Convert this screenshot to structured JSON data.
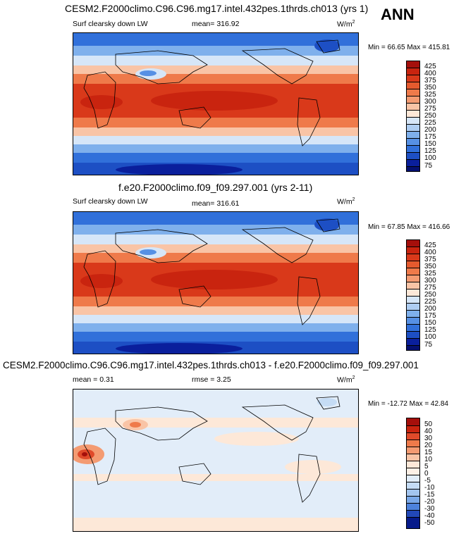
{
  "season": "ANN",
  "panels": [
    {
      "title": "CESM2.F2000climo.C96.C96.mg17.intel.432pes.1thrds.ch013 (yrs 1)",
      "left_label": "Surf clearsky down LW",
      "center_label": "mean= 316.92",
      "units": "W/m",
      "units_sup": "2",
      "minmax": "Min =  66.65 Max = 415.81",
      "cbar_labels": [
        "425",
        "400",
        "375",
        "350",
        "325",
        "300",
        "275",
        "250",
        "225",
        "200",
        "175",
        "150",
        "125",
        "100",
        "75"
      ]
    },
    {
      "title": "f.e20.F2000climo.f09_f09.297.001 (yrs 2-11)",
      "left_label": "Surf clearsky down LW",
      "center_label": "mean= 316.61",
      "units": "W/m",
      "units_sup": "2",
      "minmax": "Min =  67.85 Max = 416.66",
      "cbar_labels": [
        "425",
        "400",
        "375",
        "350",
        "325",
        "300",
        "275",
        "250",
        "225",
        "200",
        "175",
        "150",
        "125",
        "100",
        "75"
      ]
    },
    {
      "title": "CESM2.F2000climo.C96.C96.mg17.intel.432pes.1thrds.ch013 - f.e20.F2000climo.f09_f09.297.001",
      "left_label": "mean =   0.31",
      "center_label": "rmse =   3.25",
      "units": "W/m",
      "units_sup": "2",
      "minmax": "Min = -12.72 Max =  42.84",
      "cbar_labels": [
        "50",
        "40",
        "30",
        "20",
        "15",
        "10",
        "5",
        "0",
        "-5",
        "-10",
        "-15",
        "-20",
        "-30",
        "-40",
        "-50"
      ]
    }
  ],
  "colors": {
    "abs_scale": [
      "#a50f0b",
      "#c9240f",
      "#d9391a",
      "#e55a2e",
      "#ef7a4a",
      "#f49b72",
      "#f9c4a6",
      "#fde8d8",
      "#d6e6f8",
      "#aecdf2",
      "#7fb0ec",
      "#5690e4",
      "#3170da",
      "#1d4fc4",
      "#0a1f9c",
      "#051070"
    ],
    "diff_scale": [
      "#a50f0b",
      "#c9240f",
      "#e04a2a",
      "#ef7a4a",
      "#f49b72",
      "#f9c4a6",
      "#fde8d8",
      "#fdf0e6",
      "#e2edf9",
      "#c5dcf5",
      "#a3c5ef",
      "#7aa8e8",
      "#4d82dc",
      "#2248b8",
      "#061a8a"
    ]
  }
}
